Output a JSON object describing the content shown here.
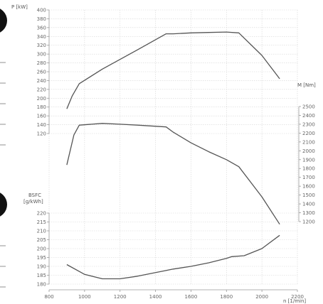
{
  "chart_data": {
    "type": "line",
    "x_label": "n [1/min]",
    "x_ticks": [
      800,
      1000,
      1200,
      1400,
      1600,
      1800,
      2000,
      2200
    ],
    "x_range": [
      800,
      2200
    ],
    "panels": {
      "power": {
        "label": "P [kW]",
        "range": [
          120,
          400
        ],
        "ticks": [
          120,
          140,
          160,
          180,
          200,
          220,
          240,
          260,
          280,
          300,
          320,
          340,
          360,
          380,
          400
        ],
        "series": {
          "name": "",
          "x": [
            900,
            930,
            970,
            1100,
            1300,
            1460,
            1500,
            1600,
            1700,
            1800,
            1870,
            2000,
            2100
          ],
          "y": [
            176,
            205,
            233,
            266,
            310,
            346,
            346,
            348,
            349,
            350,
            348,
            297,
            244
          ]
        }
      },
      "torque": {
        "label": "M [Nm]",
        "range": [
          1200,
          2500
        ],
        "ticks": [
          1200,
          1300,
          1400,
          1500,
          1600,
          1700,
          1800,
          1900,
          2000,
          2100,
          2200,
          2300,
          2400,
          2500
        ],
        "series": {
          "name": "",
          "x": [
            900,
            940,
            970,
            1100,
            1200,
            1300,
            1460,
            1500,
            1600,
            1700,
            1800,
            1870,
            2000,
            2100
          ],
          "y": [
            1840,
            2180,
            2290,
            2310,
            2300,
            2290,
            2270,
            2210,
            2090,
            1990,
            1900,
            1820,
            1480,
            1170
          ]
        }
      },
      "bsfc": {
        "label": "BSFC\n[g/kWh]",
        "range": [
          180,
          220
        ],
        "ticks": [
          180,
          185,
          190,
          195,
          200,
          205,
          210,
          215,
          220
        ],
        "series": {
          "name": "",
          "x": [
            900,
            1000,
            1100,
            1200,
            1300,
            1400,
            1500,
            1600,
            1700,
            1800,
            1830,
            1900,
            2000,
            2100
          ],
          "y": [
            191,
            185.5,
            183,
            183,
            184.5,
            186.5,
            188.5,
            190,
            192,
            194.5,
            195.5,
            196,
            200,
            207.5
          ]
        }
      }
    }
  }
}
